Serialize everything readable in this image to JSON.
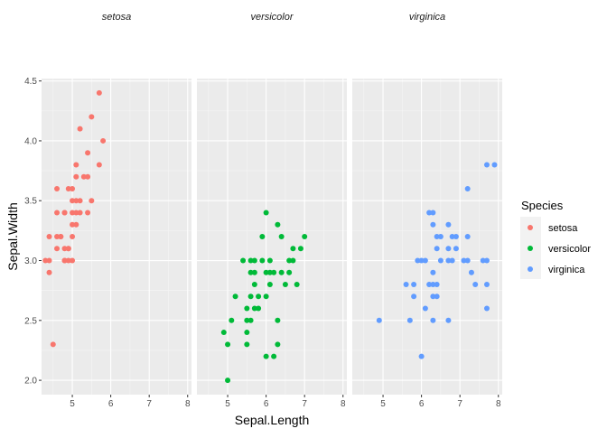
{
  "chart_data": {
    "type": "scatter",
    "facets": [
      "setosa",
      "versicolor",
      "virginica"
    ],
    "xlabel": "Sepal.Length",
    "ylabel": "Sepal.Width",
    "xlim": [
      4.2,
      8.1
    ],
    "ylim": [
      1.88,
      4.52
    ],
    "x_ticks": [
      5,
      6,
      7,
      8
    ],
    "y_ticks": [
      2.0,
      2.5,
      3.0,
      3.5,
      4.0,
      4.5
    ],
    "y_tick_labels": [
      "2.0",
      "2.5",
      "3.0",
      "3.5",
      "4.0",
      "4.5"
    ],
    "grid": true,
    "legend": {
      "title": "Species",
      "position": "right"
    },
    "series": [
      {
        "name": "setosa",
        "color": "#F8766D",
        "points": [
          [
            4.4,
            2.9
          ],
          [
            4.3,
            3.0
          ],
          [
            4.4,
            3.0
          ],
          [
            4.4,
            3.2
          ],
          [
            4.5,
            2.3
          ],
          [
            4.6,
            3.1
          ],
          [
            4.6,
            3.4
          ],
          [
            4.6,
            3.6
          ],
          [
            4.6,
            3.2
          ],
          [
            4.7,
            3.2
          ],
          [
            4.7,
            3.2
          ],
          [
            4.8,
            3.0
          ],
          [
            4.8,
            3.0
          ],
          [
            4.8,
            3.1
          ],
          [
            4.8,
            3.4
          ],
          [
            4.8,
            3.4
          ],
          [
            4.9,
            3.0
          ],
          [
            4.9,
            3.1
          ],
          [
            4.9,
            3.6
          ],
          [
            4.9,
            3.1
          ],
          [
            5.0,
            3.0
          ],
          [
            5.0,
            3.2
          ],
          [
            5.0,
            3.3
          ],
          [
            5.0,
            3.4
          ],
          [
            5.0,
            3.5
          ],
          [
            5.0,
            3.6
          ],
          [
            5.1,
            3.3
          ],
          [
            5.1,
            3.4
          ],
          [
            5.1,
            3.5
          ],
          [
            5.1,
            3.7
          ],
          [
            5.1,
            3.8
          ],
          [
            5.2,
            3.4
          ],
          [
            5.2,
            3.5
          ],
          [
            5.2,
            4.1
          ],
          [
            5.3,
            3.7
          ],
          [
            5.4,
            3.4
          ],
          [
            5.4,
            3.7
          ],
          [
            5.4,
            3.9
          ],
          [
            5.5,
            3.5
          ],
          [
            5.5,
            4.2
          ],
          [
            5.7,
            3.8
          ],
          [
            5.7,
            4.4
          ],
          [
            5.8,
            4.0
          ]
        ]
      },
      {
        "name": "versicolor",
        "color": "#00BA38",
        "points": [
          [
            4.9,
            2.4
          ],
          [
            5.0,
            2.0
          ],
          [
            5.0,
            2.3
          ],
          [
            5.1,
            2.5
          ],
          [
            5.2,
            2.7
          ],
          [
            5.4,
            3.0
          ],
          [
            5.5,
            2.3
          ],
          [
            5.5,
            2.4
          ],
          [
            5.5,
            2.5
          ],
          [
            5.5,
            2.6
          ],
          [
            5.6,
            2.5
          ],
          [
            5.6,
            2.7
          ],
          [
            5.6,
            2.9
          ],
          [
            5.6,
            3.0
          ],
          [
            5.7,
            2.6
          ],
          [
            5.7,
            2.8
          ],
          [
            5.7,
            2.9
          ],
          [
            5.7,
            3.0
          ],
          [
            5.8,
            2.6
          ],
          [
            5.8,
            2.7
          ],
          [
            5.9,
            3.0
          ],
          [
            5.9,
            3.2
          ],
          [
            6.0,
            2.2
          ],
          [
            6.0,
            2.7
          ],
          [
            6.0,
            2.9
          ],
          [
            6.0,
            3.4
          ],
          [
            6.1,
            2.8
          ],
          [
            6.1,
            2.9
          ],
          [
            6.1,
            3.0
          ],
          [
            6.2,
            2.2
          ],
          [
            6.2,
            2.9
          ],
          [
            6.3,
            2.3
          ],
          [
            6.3,
            2.5
          ],
          [
            6.3,
            3.3
          ],
          [
            6.4,
            2.9
          ],
          [
            6.4,
            3.2
          ],
          [
            6.5,
            2.8
          ],
          [
            6.6,
            2.9
          ],
          [
            6.6,
            3.0
          ],
          [
            6.7,
            3.0
          ],
          [
            6.7,
            3.1
          ],
          [
            6.8,
            2.8
          ],
          [
            6.9,
            3.1
          ],
          [
            7.0,
            3.2
          ]
        ]
      },
      {
        "name": "virginica",
        "color": "#619CFF",
        "points": [
          [
            4.9,
            2.5
          ],
          [
            5.6,
            2.8
          ],
          [
            5.7,
            2.5
          ],
          [
            5.8,
            2.7
          ],
          [
            5.8,
            2.8
          ],
          [
            5.9,
            3.0
          ],
          [
            6.0,
            2.2
          ],
          [
            6.0,
            3.0
          ],
          [
            6.1,
            2.6
          ],
          [
            6.1,
            3.0
          ],
          [
            6.2,
            2.8
          ],
          [
            6.2,
            3.4
          ],
          [
            6.3,
            2.5
          ],
          [
            6.3,
            2.7
          ],
          [
            6.3,
            2.8
          ],
          [
            6.3,
            2.9
          ],
          [
            6.3,
            3.3
          ],
          [
            6.3,
            3.4
          ],
          [
            6.4,
            2.7
          ],
          [
            6.4,
            2.8
          ],
          [
            6.4,
            3.1
          ],
          [
            6.4,
            3.2
          ],
          [
            6.5,
            3.0
          ],
          [
            6.5,
            3.2
          ],
          [
            6.7,
            2.5
          ],
          [
            6.7,
            3.0
          ],
          [
            6.7,
            3.1
          ],
          [
            6.7,
            3.3
          ],
          [
            6.8,
            3.0
          ],
          [
            6.8,
            3.2
          ],
          [
            6.9,
            3.1
          ],
          [
            6.9,
            3.2
          ],
          [
            7.1,
            3.0
          ],
          [
            7.2,
            3.0
          ],
          [
            7.2,
            3.2
          ],
          [
            7.2,
            3.6
          ],
          [
            7.3,
            2.9
          ],
          [
            7.4,
            2.8
          ],
          [
            7.6,
            3.0
          ],
          [
            7.7,
            2.6
          ],
          [
            7.7,
            2.8
          ],
          [
            7.7,
            3.0
          ],
          [
            7.7,
            3.8
          ],
          [
            7.9,
            3.8
          ]
        ]
      }
    ]
  }
}
